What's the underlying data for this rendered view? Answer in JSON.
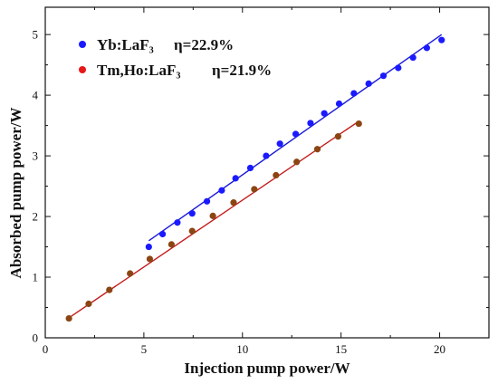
{
  "chart_data": {
    "type": "scatter",
    "xlabel": "Injection pump power/W",
    "ylabel": "Absorbed pump power/W",
    "xlim": [
      0,
      22.5
    ],
    "ylim": [
      0,
      5.45
    ],
    "xticks": [
      0,
      5,
      10,
      15,
      20
    ],
    "yticks": [
      0,
      1,
      2,
      3,
      4,
      5
    ],
    "x_tick_labels": [
      "0",
      "5",
      "10",
      "15",
      "20"
    ],
    "y_tick_labels": [
      "0",
      "1",
      "2",
      "3",
      "4",
      "5"
    ],
    "grid": false,
    "legend_position": "top-left",
    "series": [
      {
        "name": "Yb:LaF₃",
        "efficiency_label": "η=22.9%",
        "color": "#1a1aff",
        "line_color": "#1a1ad9",
        "x": [
          5.25,
          5.95,
          6.7,
          7.45,
          8.2,
          8.95,
          9.65,
          10.4,
          11.2,
          11.9,
          12.7,
          13.45,
          14.15,
          14.9,
          15.65,
          16.4,
          17.15,
          17.9,
          18.65,
          19.35,
          20.1
        ],
        "y": [
          1.5,
          1.71,
          1.9,
          2.05,
          2.25,
          2.43,
          2.63,
          2.8,
          3.0,
          3.2,
          3.36,
          3.54,
          3.7,
          3.86,
          4.03,
          4.19,
          4.32,
          4.45,
          4.62,
          4.78,
          4.91
        ],
        "fit": {
          "x": [
            5.25,
            20.1
          ],
          "y": [
            1.6,
            5.0
          ]
        }
      },
      {
        "name": "Tm,Ho:LaF₃",
        "efficiency_label": "η=21.9%",
        "color": "#e81818",
        "point_color": "#8b4513",
        "line_color": "#c41a1a",
        "x": [
          1.2,
          2.2,
          3.25,
          4.3,
          5.3,
          6.4,
          7.45,
          8.5,
          9.55,
          10.6,
          11.7,
          12.75,
          13.8,
          14.85,
          15.9
        ],
        "y": [
          0.32,
          0.56,
          0.79,
          1.06,
          1.3,
          1.54,
          1.76,
          2.01,
          2.23,
          2.45,
          2.68,
          2.9,
          3.11,
          3.32,
          3.53
        ],
        "fit": {
          "x": [
            1.2,
            15.9
          ],
          "y": [
            0.33,
            3.57
          ]
        }
      }
    ]
  }
}
